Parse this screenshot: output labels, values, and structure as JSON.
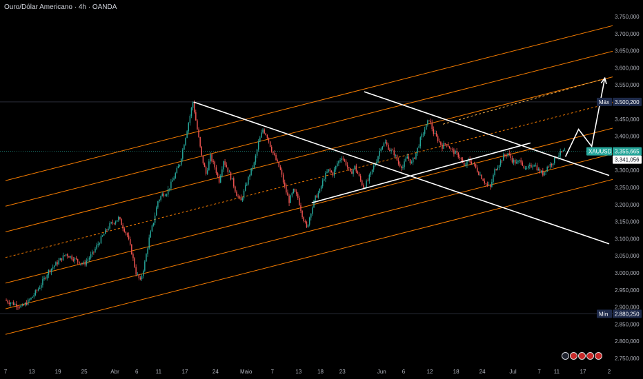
{
  "header": {
    "title": "Ouro/Dólar Americano · 4h · OANDA"
  },
  "colors": {
    "background": "#000000",
    "up": "#26a69a",
    "down": "#ef5350",
    "channel": "#f57c00",
    "trendline": "#ffffff",
    "current_tag": "#26a69a",
    "hl_tag": "#1e2a4a"
  },
  "chart_data": {
    "type": "candlestick",
    "symbol": "XAUUSD",
    "y_ticks": [
      "3.750,000",
      "3.700,000",
      "3.650,000",
      "3.600,000",
      "3.550,000",
      "3.500,000",
      "3.450,000",
      "3.400,000",
      "3.350,000",
      "3.300,000",
      "3.250,000",
      "3.200,000",
      "3.150,000",
      "3.100,000",
      "3.050,000",
      "3.000,000",
      "2.950,000",
      "2.900,000",
      "2.850,000",
      "2.800,000",
      "2.750,000"
    ],
    "y_tick_values": [
      3750,
      3700,
      3650,
      3600,
      3550,
      3500,
      3450,
      3400,
      3350,
      3300,
      3250,
      3200,
      3150,
      3100,
      3050,
      3000,
      2950,
      2900,
      2850,
      2800,
      2750
    ],
    "x_ticks": [
      {
        "label": "7",
        "day": 0
      },
      {
        "label": "13",
        "day": 6
      },
      {
        "label": "19",
        "day": 12
      },
      {
        "label": "25",
        "day": 18
      },
      {
        "label": "Abr",
        "day": 25
      },
      {
        "label": "6",
        "day": 30
      },
      {
        "label": "11",
        "day": 35
      },
      {
        "label": "17",
        "day": 41
      },
      {
        "label": "24",
        "day": 48
      },
      {
        "label": "Maio",
        "day": 55
      },
      {
        "label": "7",
        "day": 61
      },
      {
        "label": "13",
        "day": 67
      },
      {
        "label": "18",
        "day": 72
      },
      {
        "label": "23",
        "day": 77
      },
      {
        "label": "Jun",
        "day": 86
      },
      {
        "label": "6",
        "day": 91
      },
      {
        "label": "12",
        "day": 97
      },
      {
        "label": "18",
        "day": 103
      },
      {
        "label": "24",
        "day": 109
      },
      {
        "label": "Jul",
        "day": 116
      },
      {
        "label": "7",
        "day": 122
      },
      {
        "label": "11",
        "day": 126
      },
      {
        "label": "17",
        "day": 132
      },
      {
        "label": "2",
        "day": 138
      }
    ],
    "price_path": [
      [
        0,
        2920
      ],
      [
        2,
        2910
      ],
      [
        4,
        2900
      ],
      [
        6,
        2925
      ],
      [
        8,
        2960
      ],
      [
        10,
        3005
      ],
      [
        12,
        3030
      ],
      [
        14,
        3055
      ],
      [
        16,
        3040
      ],
      [
        18,
        3025
      ],
      [
        20,
        3055
      ],
      [
        22,
        3100
      ],
      [
        24,
        3140
      ],
      [
        26,
        3160
      ],
      [
        28,
        3110
      ],
      [
        29,
        3060
      ],
      [
        30,
        3000
      ],
      [
        31,
        2975
      ],
      [
        32,
        3030
      ],
      [
        33,
        3100
      ],
      [
        34,
        3150
      ],
      [
        35,
        3210
      ],
      [
        36,
        3230
      ],
      [
        37,
        3235
      ],
      [
        38,
        3260
      ],
      [
        39,
        3290
      ],
      [
        40,
        3320
      ],
      [
        41,
        3380
      ],
      [
        42,
        3440
      ],
      [
        43,
        3500
      ],
      [
        44,
        3420
      ],
      [
        45,
        3340
      ],
      [
        46,
        3290
      ],
      [
        47,
        3340
      ],
      [
        48,
        3310
      ],
      [
        49,
        3270
      ],
      [
        50,
        3330
      ],
      [
        51,
        3300
      ],
      [
        52,
        3270
      ],
      [
        53,
        3230
      ],
      [
        54,
        3210
      ],
      [
        55,
        3250
      ],
      [
        56,
        3290
      ],
      [
        57,
        3320
      ],
      [
        58,
        3380
      ],
      [
        59,
        3420
      ],
      [
        60,
        3400
      ],
      [
        61,
        3360
      ],
      [
        62,
        3330
      ],
      [
        63,
        3300
      ],
      [
        64,
        3250
      ],
      [
        65,
        3210
      ],
      [
        66,
        3240
      ],
      [
        67,
        3220
      ],
      [
        68,
        3170
      ],
      [
        69,
        3130
      ],
      [
        70,
        3180
      ],
      [
        71,
        3220
      ],
      [
        72,
        3240
      ],
      [
        73,
        3280
      ],
      [
        74,
        3300
      ],
      [
        75,
        3290
      ],
      [
        76,
        3320
      ],
      [
        77,
        3340
      ],
      [
        78,
        3320
      ],
      [
        79,
        3290
      ],
      [
        80,
        3310
      ],
      [
        81,
        3280
      ],
      [
        82,
        3250
      ],
      [
        83,
        3270
      ],
      [
        84,
        3300
      ],
      [
        85,
        3330
      ],
      [
        86,
        3370
      ],
      [
        87,
        3380
      ],
      [
        88,
        3360
      ],
      [
        89,
        3350
      ],
      [
        90,
        3320
      ],
      [
        91,
        3310
      ],
      [
        92,
        3340
      ],
      [
        93,
        3320
      ],
      [
        94,
        3350
      ],
      [
        95,
        3390
      ],
      [
        96,
        3420
      ],
      [
        97,
        3450
      ],
      [
        98,
        3410
      ],
      [
        99,
        3390
      ],
      [
        100,
        3370
      ],
      [
        101,
        3380
      ],
      [
        102,
        3360
      ],
      [
        103,
        3350
      ],
      [
        104,
        3340
      ],
      [
        105,
        3310
      ],
      [
        106,
        3330
      ],
      [
        107,
        3320
      ],
      [
        108,
        3300
      ],
      [
        109,
        3280
      ],
      [
        110,
        3260
      ],
      [
        111,
        3250
      ],
      [
        112,
        3300
      ],
      [
        113,
        3320
      ],
      [
        114,
        3340
      ],
      [
        115,
        3350
      ],
      [
        116,
        3330
      ],
      [
        117,
        3320
      ],
      [
        118,
        3330
      ],
      [
        119,
        3300
      ],
      [
        120,
        3310
      ],
      [
        121,
        3320
      ],
      [
        122,
        3300
      ],
      [
        123,
        3290
      ],
      [
        124,
        3310
      ],
      [
        125,
        3320
      ],
      [
        126,
        3340
      ],
      [
        127,
        3350
      ],
      [
        128,
        3356
      ]
    ],
    "channel_lines": [
      {
        "start": [
          0,
          2820
        ],
        "end": [
          150,
          3310
        ]
      },
      {
        "start": [
          0,
          2895
        ],
        "end": [
          150,
          3385
        ]
      },
      {
        "start": [
          0,
          2970
        ],
        "end": [
          150,
          3460
        ]
      },
      {
        "start": [
          0,
          3045
        ],
        "end": [
          150,
          3535
        ]
      },
      {
        "start": [
          0,
          3120
        ],
        "end": [
          150,
          3610
        ]
      },
      {
        "start": [
          0,
          3195
        ],
        "end": [
          150,
          3685
        ]
      },
      {
        "start": [
          0,
          3270
        ],
        "end": [
          150,
          3760
        ]
      }
    ],
    "dashed_midline": {
      "start": [
        0,
        3045
      ],
      "end": [
        150,
        3535
      ]
    },
    "dashed_extension": {
      "start": [
        100,
        3435
      ],
      "end": [
        136,
        3565
      ]
    },
    "trendlines": [
      {
        "start": [
          43,
          3500
        ],
        "end": [
          138,
          3085
        ]
      },
      {
        "start": [
          82,
          3530
        ],
        "end": [
          138,
          3285
        ]
      },
      {
        "start": [
          70,
          3205
        ],
        "end": [
          120,
          3380
        ]
      }
    ],
    "projection": [
      [
        128,
        3340
      ],
      [
        131,
        3420
      ],
      [
        134,
        3370
      ],
      [
        137,
        3570
      ]
    ],
    "current_price": 3355.665,
    "current_price_label": "3.355,665",
    "symbol_label": "XAUUSD",
    "countdown_price": 3341.056,
    "countdown_label": "3.341,056",
    "max_label": "Máx",
    "max_value": 3500.2,
    "max_value_label": "3.500,200",
    "min_label": "Mín",
    "min_value": 2880.25,
    "min_value_label": "2.880,250"
  }
}
